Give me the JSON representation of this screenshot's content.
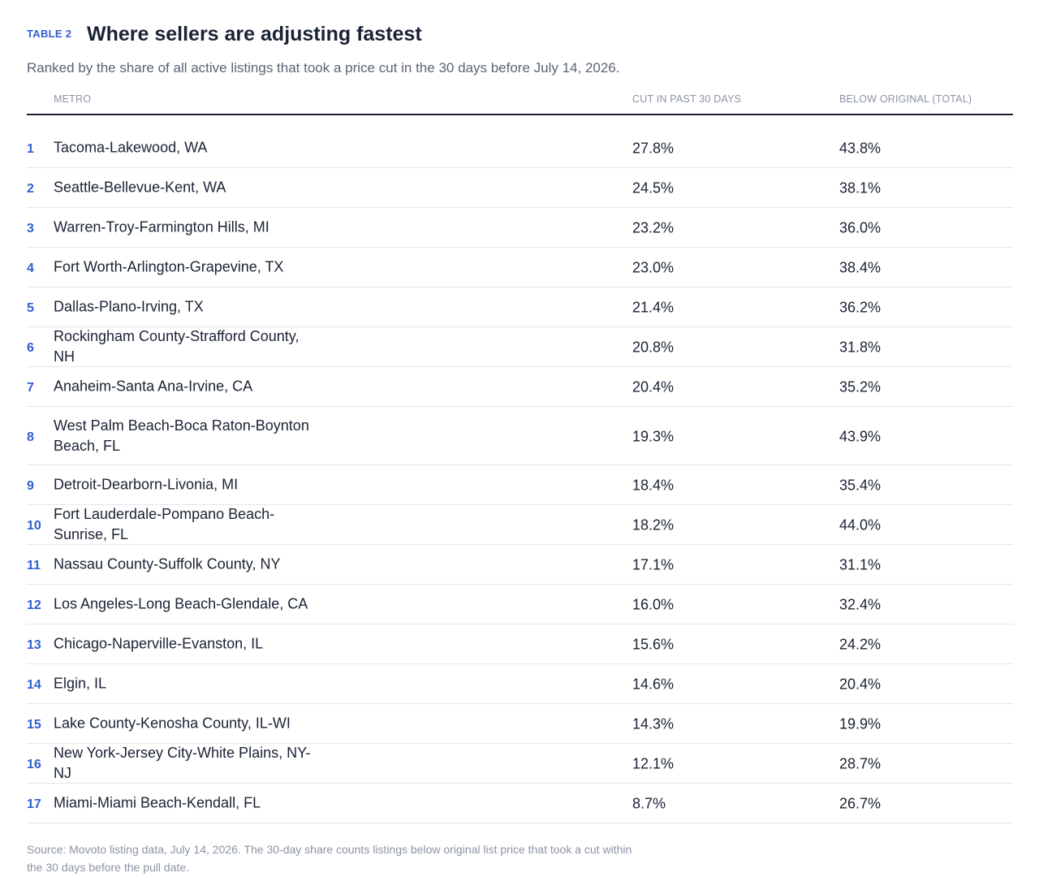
{
  "header": {
    "tag": "TABLE 2",
    "title": "Where sellers are adjusting fastest",
    "subtitle": "Ranked by the share of all active listings that took a price cut in the 30 days before July 14, 2026."
  },
  "columns": {
    "metro": "METRO",
    "cut": "CUT IN PAST 30 DAYS",
    "below": "BELOW ORIGINAL (TOTAL)"
  },
  "rows": [
    {
      "rank": "1",
      "metro": "Tacoma-Lakewood, WA",
      "cut": "27.8%",
      "below": "43.8%"
    },
    {
      "rank": "2",
      "metro": "Seattle-Bellevue-Kent, WA",
      "cut": "24.5%",
      "below": "38.1%"
    },
    {
      "rank": "3",
      "metro": "Warren-Troy-Farmington Hills, MI",
      "cut": "23.2%",
      "below": "36.0%"
    },
    {
      "rank": "4",
      "metro": "Fort Worth-Arlington-Grapevine, TX",
      "cut": "23.0%",
      "below": "38.4%"
    },
    {
      "rank": "5",
      "metro": "Dallas-Plano-Irving, TX",
      "cut": "21.4%",
      "below": "36.2%"
    },
    {
      "rank": "6",
      "metro": "Rockingham County-Strafford County, NH",
      "cut": "20.8%",
      "below": "31.8%"
    },
    {
      "rank": "7",
      "metro": "Anaheim-Santa Ana-Irvine, CA",
      "cut": "20.4%",
      "below": "35.2%"
    },
    {
      "rank": "8",
      "metro": "West Palm Beach-Boca Raton-Boynton Beach, FL",
      "cut": "19.3%",
      "below": "43.9%"
    },
    {
      "rank": "9",
      "metro": "Detroit-Dearborn-Livonia, MI",
      "cut": "18.4%",
      "below": "35.4%"
    },
    {
      "rank": "10",
      "metro": "Fort Lauderdale-Pompano Beach-Sunrise, FL",
      "cut": "18.2%",
      "below": "44.0%"
    },
    {
      "rank": "11",
      "metro": "Nassau County-Suffolk County, NY",
      "cut": "17.1%",
      "below": "31.1%"
    },
    {
      "rank": "12",
      "metro": "Los Angeles-Long Beach-Glendale, CA",
      "cut": "16.0%",
      "below": "32.4%"
    },
    {
      "rank": "13",
      "metro": "Chicago-Naperville-Evanston, IL",
      "cut": "15.6%",
      "below": "24.2%"
    },
    {
      "rank": "14",
      "metro": "Elgin, IL",
      "cut": "14.6%",
      "below": "20.4%"
    },
    {
      "rank": "15",
      "metro": "Lake County-Kenosha County, IL-WI",
      "cut": "14.3%",
      "below": "19.9%"
    },
    {
      "rank": "16",
      "metro": "New York-Jersey City-White Plains, NY-NJ",
      "cut": "12.1%",
      "below": "28.7%"
    },
    {
      "rank": "17",
      "metro": "Miami-Miami Beach-Kendall, FL",
      "cut": "8.7%",
      "below": "26.7%"
    }
  ],
  "source": "Source: Movoto listing data, July 14, 2026. The 30-day share counts listings below original list price that took a cut within the 30 days before the pull date."
}
